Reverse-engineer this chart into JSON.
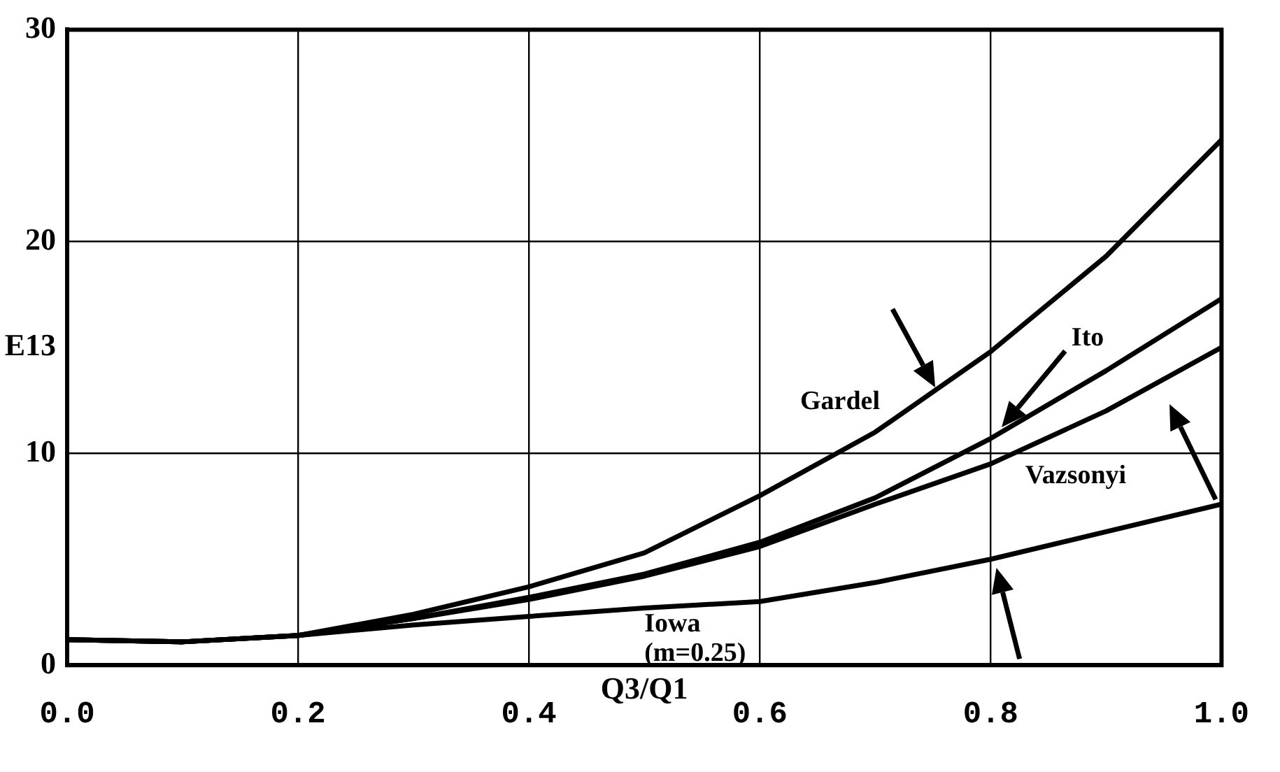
{
  "chart_data": {
    "type": "line",
    "xlabel": "Q3/Q1",
    "ylabel": "E13",
    "x": [
      0,
      0.1,
      0.2,
      0.3,
      0.4,
      0.5,
      0.6,
      0.7,
      0.8,
      0.9,
      1.0
    ],
    "series": [
      {
        "name": "Gardel",
        "color": "#000000",
        "values": [
          1.2,
          1.1,
          1.4,
          2.4,
          3.7,
          5.3,
          8.0,
          11.0,
          14.8,
          19.3,
          24.8
        ]
      },
      {
        "name": "Ito",
        "color": "#000000",
        "values": [
          1.2,
          1.1,
          1.4,
          2.2,
          3.2,
          4.3,
          5.8,
          7.9,
          10.7,
          13.9,
          17.3
        ]
      },
      {
        "name": "Vazsonyi",
        "color": "#000000",
        "values": [
          1.2,
          1.1,
          1.4,
          2.2,
          3.1,
          4.2,
          5.6,
          7.6,
          9.5,
          12.0,
          15.0
        ]
      },
      {
        "name": "Iowa (m=0.25)",
        "color": "#000000",
        "values": [
          1.2,
          1.1,
          1.4,
          1.9,
          2.3,
          2.7,
          3.0,
          3.9,
          5.0,
          6.3,
          7.6
        ]
      }
    ],
    "xlim": [
      0,
      1.0
    ],
    "xticks": [
      {
        "value": 0,
        "label": "0.0"
      },
      0.2,
      0.4,
      0.6,
      0.8,
      {
        "value": 1.0,
        "label": "1.0"
      }
    ],
    "ylim": [
      0,
      30
    ],
    "yticks": [
      0,
      10,
      20,
      30
    ],
    "grid": true,
    "legend": false,
    "marker": "none",
    "line_style": "solid"
  }
}
